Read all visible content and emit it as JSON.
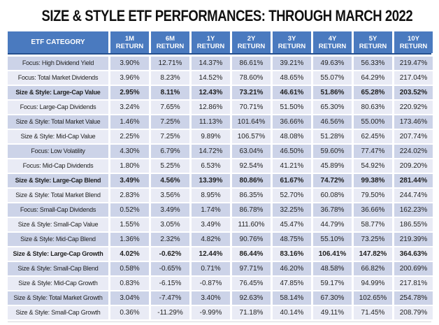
{
  "title": "SIZE & STYLE ETF PERFORMANCES: THROUGH MARCH 2022",
  "colors": {
    "header_bg": "#4a7abf",
    "header_text": "#ffffff",
    "header_underline": "#26508f",
    "row_dark": "#ccd3e8",
    "row_light": "#e9ebf5",
    "cell_text": "#1f1f1f"
  },
  "table": {
    "category_header": "ETF CATEGORY",
    "return_word": "RETURN",
    "period_labels": [
      "1M",
      "6M",
      "1Y",
      "2Y",
      "3Y",
      "4Y",
      "5Y",
      "10Y"
    ]
  },
  "chart_data": {
    "type": "table",
    "title": "SIZE & STYLE ETF PERFORMANCES: THROUGH MARCH 2022",
    "columns": [
      "ETF CATEGORY",
      "1M RETURN",
      "6M RETURN",
      "1Y RETURN",
      "2Y RETURN",
      "3Y RETURN",
      "4Y RETURN",
      "5Y RETURN",
      "10Y RETURN"
    ],
    "rows": [
      {
        "category": "Focus: High Dividend Yield",
        "bold": false,
        "values": [
          "3.90%",
          "12.71%",
          "14.37%",
          "86.61%",
          "39.21%",
          "49.63%",
          "56.33%",
          "219.47%"
        ]
      },
      {
        "category": "Focus: Total Market Dividends",
        "bold": false,
        "values": [
          "3.96%",
          "8.23%",
          "14.52%",
          "78.60%",
          "48.65%",
          "55.07%",
          "64.29%",
          "217.04%"
        ]
      },
      {
        "category": "Size & Style: Large-Cap Value",
        "bold": true,
        "values": [
          "2.95%",
          "8.11%",
          "12.43%",
          "73.21%",
          "46.61%",
          "51.86%",
          "65.28%",
          "203.52%"
        ]
      },
      {
        "category": "Focus: Large-Cap Dividends",
        "bold": false,
        "values": [
          "3.24%",
          "7.65%",
          "12.86%",
          "70.71%",
          "51.50%",
          "65.30%",
          "80.63%",
          "220.92%"
        ]
      },
      {
        "category": "Size & Style: Total Market Value",
        "bold": false,
        "values": [
          "1.46%",
          "7.25%",
          "11.13%",
          "101.64%",
          "36.66%",
          "46.56%",
          "55.00%",
          "173.46%"
        ]
      },
      {
        "category": "Size & Style: Mid-Cap Value",
        "bold": false,
        "values": [
          "2.25%",
          "7.25%",
          "9.89%",
          "106.57%",
          "48.08%",
          "51.28%",
          "62.45%",
          "207.74%"
        ]
      },
      {
        "category": "Focus: Low Volatility",
        "bold": false,
        "values": [
          "4.30%",
          "6.79%",
          "14.72%",
          "63.04%",
          "46.50%",
          "59.60%",
          "77.47%",
          "224.02%"
        ]
      },
      {
        "category": "Focus: Mid-Cap Dividends",
        "bold": false,
        "values": [
          "1.80%",
          "5.25%",
          "6.53%",
          "92.54%",
          "41.21%",
          "45.89%",
          "54.92%",
          "209.20%"
        ]
      },
      {
        "category": "Size & Style: Large-Cap Blend",
        "bold": true,
        "values": [
          "3.49%",
          "4.56%",
          "13.39%",
          "80.86%",
          "61.67%",
          "74.72%",
          "99.38%",
          "281.44%"
        ]
      },
      {
        "category": "Size & Style: Total Market Blend",
        "bold": false,
        "values": [
          "2.83%",
          "3.56%",
          "8.95%",
          "86.35%",
          "52.70%",
          "60.08%",
          "79.50%",
          "244.74%"
        ]
      },
      {
        "category": "Focus: Small-Cap Dividends",
        "bold": false,
        "values": [
          "0.52%",
          "3.49%",
          "1.74%",
          "86.78%",
          "32.25%",
          "36.78%",
          "36.66%",
          "162.23%"
        ]
      },
      {
        "category": "Size & Style: Small-Cap Value",
        "bold": false,
        "values": [
          "1.55%",
          "3.05%",
          "3.49%",
          "111.60%",
          "45.47%",
          "44.79%",
          "58.77%",
          "186.55%"
        ]
      },
      {
        "category": "Size & Style: Mid-Cap Blend",
        "bold": false,
        "values": [
          "1.36%",
          "2.32%",
          "4.82%",
          "90.76%",
          "48.75%",
          "55.10%",
          "73.25%",
          "219.39%"
        ]
      },
      {
        "category": "Size & Style: Large-Cap Growth",
        "bold": true,
        "values": [
          "4.02%",
          "-0.62%",
          "12.44%",
          "86.44%",
          "83.16%",
          "106.41%",
          "147.82%",
          "364.63%"
        ]
      },
      {
        "category": "Size & Style: Small-Cap Blend",
        "bold": false,
        "values": [
          "0.58%",
          "-0.65%",
          "0.71%",
          "97.71%",
          "46.20%",
          "48.58%",
          "66.82%",
          "200.69%"
        ]
      },
      {
        "category": "Size & Style: Mid-Cap Growth",
        "bold": false,
        "values": [
          "0.83%",
          "-6.15%",
          "-0.87%",
          "76.45%",
          "47.85%",
          "59.17%",
          "94.99%",
          "217.81%"
        ]
      },
      {
        "category": "Size & Style: Total Market Growth",
        "bold": false,
        "values": [
          "3.04%",
          "-7.47%",
          "3.40%",
          "92.63%",
          "58.14%",
          "67.30%",
          "102.65%",
          "254.78%"
        ]
      },
      {
        "category": "Size & Style: Small-Cap Growth",
        "bold": false,
        "values": [
          "0.36%",
          "-11.29%",
          "-9.99%",
          "71.18%",
          "40.14%",
          "49.11%",
          "71.45%",
          "208.79%"
        ]
      }
    ]
  }
}
